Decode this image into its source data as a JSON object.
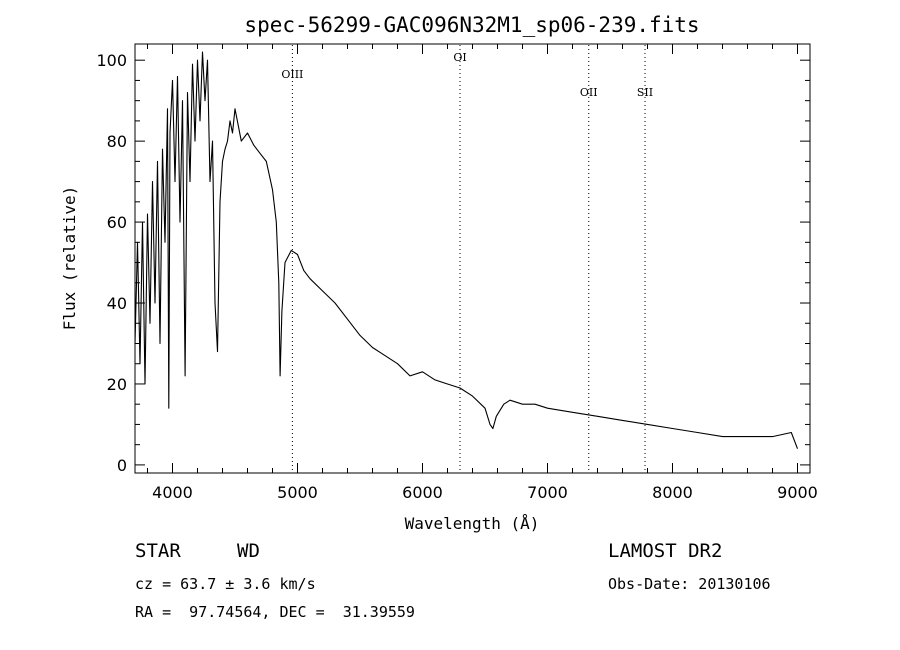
{
  "chart_data": {
    "type": "line",
    "title": "spec-56299-GAC096N32M1_sp06-239.fits",
    "xlabel": "Wavelength (Å)",
    "ylabel": "Flux (relative)",
    "xlim": [
      3700,
      9100
    ],
    "ylim": [
      -2,
      104
    ],
    "xticks": [
      4000,
      5000,
      6000,
      7000,
      8000,
      9000
    ],
    "yticks": [
      0,
      20,
      40,
      60,
      80,
      100
    ],
    "grid": false,
    "series": [
      {
        "x": [
          3700,
          3720,
          3740,
          3760,
          3780,
          3800,
          3820,
          3840,
          3860,
          3880,
          3900,
          3920,
          3940,
          3960,
          3970,
          3980,
          4000,
          4020,
          4040,
          4060,
          4080,
          4101,
          4120,
          4140,
          4160,
          4180,
          4200,
          4220,
          4240,
          4260,
          4280,
          4300,
          4320,
          4340,
          4360,
          4380,
          4400,
          4420,
          4440,
          4460,
          4480,
          4500,
          4550,
          4600,
          4650,
          4700,
          4750,
          4800,
          4830,
          4850,
          4861,
          4875,
          4900,
          4950,
          5000,
          5050,
          5100,
          5200,
          5300,
          5400,
          5500,
          5600,
          5700,
          5800,
          5900,
          6000,
          6100,
          6200,
          6300,
          6400,
          6500,
          6540,
          6563,
          6590,
          6650,
          6700,
          6800,
          6900,
          7000,
          7200,
          7400,
          7600,
          7800,
          8000,
          8200,
          8400,
          8600,
          8800,
          8950,
          9000
        ],
        "y": [
          30,
          55,
          25,
          60,
          20,
          62,
          35,
          70,
          40,
          75,
          30,
          78,
          55,
          88,
          14,
          82,
          95,
          70,
          96,
          60,
          90,
          22,
          92,
          70,
          99,
          80,
          100,
          85,
          102,
          90,
          100,
          70,
          80,
          40,
          28,
          65,
          75,
          78,
          80,
          85,
          82,
          88,
          80,
          82,
          79,
          77,
          75,
          68,
          60,
          45,
          22,
          38,
          50,
          53,
          52,
          48,
          46,
          43,
          40,
          36,
          32,
          29,
          27,
          25,
          22,
          23,
          21,
          20,
          19,
          17,
          14,
          10,
          9,
          12,
          15,
          16,
          15,
          15,
          14,
          13,
          12,
          11,
          10,
          9,
          8,
          7,
          7,
          7,
          8,
          4
        ]
      }
    ],
    "line_labels": [
      {
        "label": "OIII",
        "x": 4959
      },
      {
        "label": "OI",
        "x": 6300
      },
      {
        "label": "OII",
        "x": 7330
      },
      {
        "label": "SII",
        "x": 7780
      }
    ]
  },
  "info": {
    "class": "STAR",
    "subclass": "WD",
    "survey": "LAMOST DR2",
    "cz": "cz = 63.7 ± 3.6 km/s",
    "obs_date": "Obs-Date: 20130106",
    "coords": "RA =  97.74564, DEC =  31.39559"
  }
}
